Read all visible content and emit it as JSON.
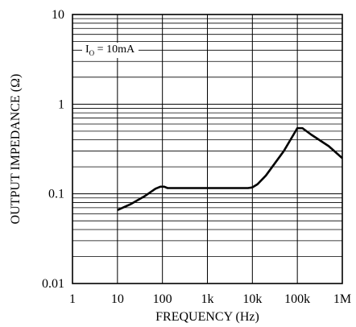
{
  "chart_data": {
    "type": "line",
    "title": "",
    "xlabel": "FREQUENCY (Hz)",
    "ylabel": "OUTPUT IMPEDANCE (Ω)",
    "x_scale": "log",
    "y_scale": "log",
    "xlim": [
      1,
      1000000
    ],
    "ylim": [
      0.01,
      10
    ],
    "x_ticks": [
      "1",
      "10",
      "100",
      "1k",
      "10k",
      "100k",
      "1M"
    ],
    "x_tick_values": [
      1,
      10,
      100,
      1000,
      10000,
      100000,
      1000000
    ],
    "y_ticks": [
      "0.01",
      "0.1",
      "1",
      "10"
    ],
    "y_tick_values": [
      0.01,
      0.1,
      1,
      10
    ],
    "grid": true,
    "annotation": {
      "main": "I",
      "sub": "O",
      "rest": " = 10mA"
    },
    "series": [
      {
        "x": [
          10,
          20,
          40,
          70,
          90,
          110,
          130,
          1000,
          8000,
          10000,
          13000,
          20000,
          50000,
          100000,
          130000,
          200000,
          500000,
          1000000
        ],
        "y": [
          0.066,
          0.077,
          0.094,
          0.114,
          0.12,
          0.12,
          0.116,
          0.116,
          0.116,
          0.118,
          0.128,
          0.16,
          0.3,
          0.54,
          0.54,
          0.46,
          0.34,
          0.25
        ]
      }
    ]
  }
}
